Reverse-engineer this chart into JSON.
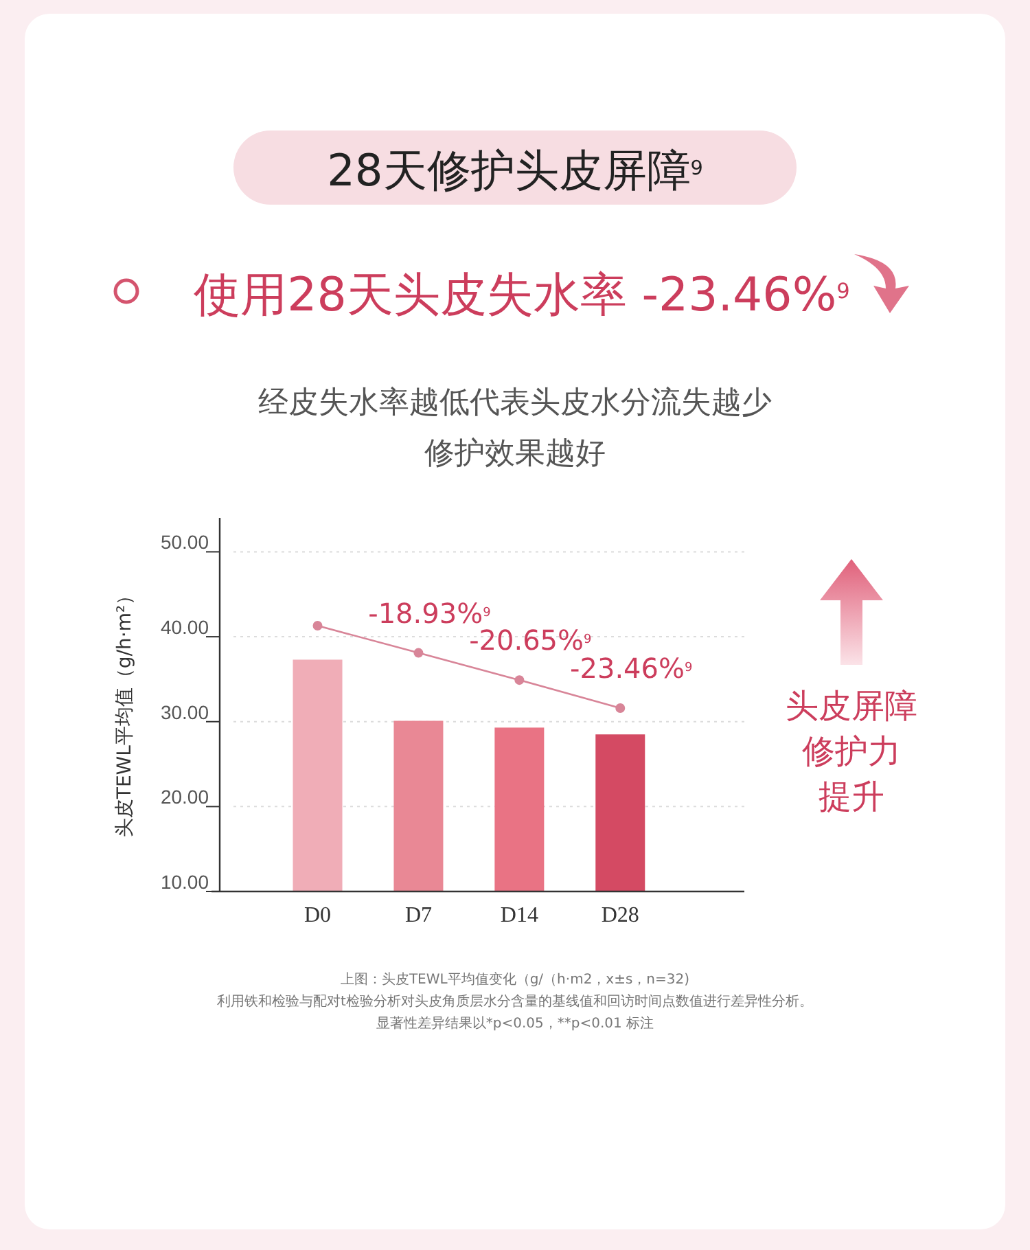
{
  "chart_data": {
    "type": "bar",
    "title": "28天修护头皮屏障$^{9}$",
    "subtitle": "使用28天头皮失水率 -23.46%$^{9}$",
    "ylabel": "头皮TEWL平均值（g/h·m²）",
    "categories": [
      "D0",
      "D7",
      "D14",
      "D28"
    ],
    "series": [
      {
        "colors": [
          "#f0adb7",
          "#e98895",
          "#e97384",
          "#d44a63"
        ],
        "values": [
          37.3,
          30.1,
          29.3,
          28.5
        ]
      },
      {
        "type": "line",
        "color": "#d88598",
        "values": [
          41.3,
          38.1,
          34.9,
          31.6
        ],
        "marker": "circle"
      }
    ],
    "ylim": [
      10,
      54
    ],
    "yticks": [
      {
        "value": 10,
        "label": "10.00"
      },
      {
        "value": 20,
        "label": "20.00"
      },
      {
        "value": 30,
        "label": "30.00"
      },
      {
        "value": 40,
        "label": "40.00"
      },
      {
        "value": 50,
        "label": "50.00"
      }
    ],
    "grid": "y",
    "annotations": [
      "经皮失水率越低代表头皮水分流失越少",
      "修护效果越好",
      {
        "text": "-18.93%$^{9}$",
        "x": "D7",
        "y": 38.1
      },
      {
        "text": "-20.65%$^{9}$",
        "x": "D14",
        "y": 34.9
      },
      {
        "text": "-23.46%$^{9}$",
        "x": "D28",
        "y": 31.6
      },
      "头皮屏障",
      "修护力",
      "提升",
      "上图：头皮TEWL平均值变化（g/（h·m2，x±s，n=32)",
      "利用铁和检验与配对t检验分析对头皮角质层水分含量的基线值和回访时间点数值进行差异性分析。",
      "显著性差异结果以*p<0.05，**p<0.01 标注"
    ]
  }
}
